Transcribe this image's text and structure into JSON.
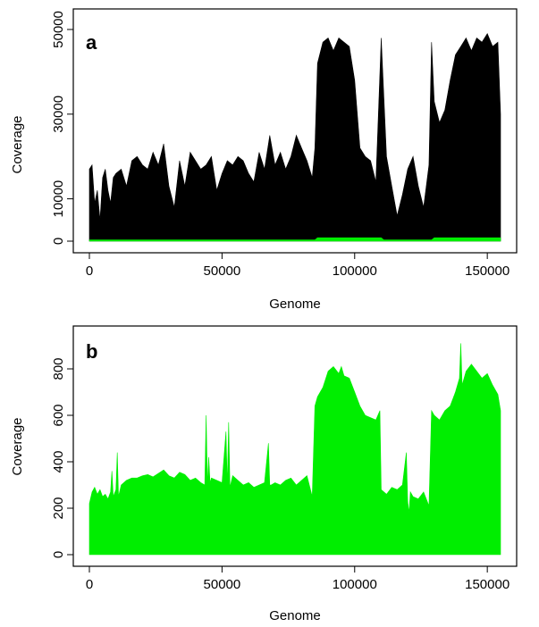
{
  "chart_data": [
    {
      "type": "area",
      "panel_label": "a",
      "xlabel": "Genome",
      "ylabel": "Coverage",
      "xlim": [
        0,
        155000
      ],
      "ylim": [
        0,
        50000
      ],
      "xticks": [
        0,
        50000,
        100000,
        150000
      ],
      "yticks": [
        0,
        10000,
        30000,
        50000
      ],
      "grid": false,
      "series": [
        {
          "color": "#000000",
          "x": [
            0,
            1000,
            2000,
            3000,
            4000,
            5000,
            6000,
            7000,
            8000,
            9000,
            10000,
            12000,
            14000,
            16000,
            18000,
            20000,
            22000,
            24000,
            26000,
            28000,
            30000,
            32000,
            34000,
            36000,
            38000,
            40000,
            42000,
            44000,
            46000,
            48000,
            50000,
            52000,
            54000,
            56000,
            58000,
            60000,
            62000,
            64000,
            66000,
            68000,
            70000,
            72000,
            74000,
            76000,
            78000,
            80000,
            82000,
            84000,
            85000,
            86000,
            88000,
            90000,
            92000,
            94000,
            96000,
            98000,
            100000,
            102000,
            104000,
            106000,
            108000,
            110000,
            112000,
            114000,
            116000,
            118000,
            120000,
            122000,
            124000,
            126000,
            128000,
            129000,
            130000,
            132000,
            134000,
            136000,
            138000,
            140000,
            142000,
            144000,
            146000,
            148000,
            150000,
            152000,
            154000,
            155000
          ],
          "values": [
            17000,
            18000,
            9000,
            12000,
            5000,
            15000,
            17000,
            12000,
            9000,
            15000,
            16000,
            17000,
            13000,
            19000,
            20000,
            18000,
            17000,
            21000,
            18000,
            23000,
            13000,
            8000,
            19000,
            13000,
            21000,
            19000,
            17000,
            18000,
            20000,
            12000,
            16000,
            19000,
            18000,
            20000,
            19000,
            16000,
            14000,
            21000,
            17000,
            25000,
            18000,
            21000,
            17000,
            20000,
            25000,
            22000,
            19000,
            15000,
            22000,
            42000,
            47000,
            48000,
            45000,
            48000,
            47000,
            46000,
            38000,
            22000,
            20000,
            19000,
            14000,
            48000,
            20000,
            13000,
            6000,
            11000,
            17000,
            20000,
            13000,
            8000,
            18000,
            47000,
            33000,
            28000,
            31000,
            38000,
            44000,
            46000,
            48000,
            45000,
            48000,
            47000,
            49000,
            46000,
            47000,
            30000
          ]
        },
        {
          "color": "#00ee00",
          "x": [
            0,
            85000,
            86000,
            110000,
            111000,
            129000,
            130000,
            155000
          ],
          "values": [
            300,
            300,
            800,
            800,
            300,
            300,
            800,
            800
          ]
        }
      ]
    },
    {
      "type": "area",
      "panel_label": "b",
      "xlabel": "Genome",
      "ylabel": "Coverage",
      "xlim": [
        0,
        155000
      ],
      "ylim": [
        0,
        900
      ],
      "xticks": [
        0,
        50000,
        100000,
        150000
      ],
      "yticks": [
        0,
        200,
        400,
        600,
        800
      ],
      "grid": false,
      "series": [
        {
          "color": "#00ee00",
          "x": [
            0,
            1000,
            2000,
            3000,
            4000,
            5000,
            6000,
            7000,
            8000,
            8500,
            9000,
            10000,
            10500,
            11000,
            12000,
            14000,
            16000,
            18000,
            20000,
            22000,
            24000,
            26000,
            28000,
            30000,
            32000,
            34000,
            36000,
            38000,
            40000,
            42000,
            43500,
            44000,
            44500,
            45000,
            45500,
            46000,
            48000,
            50000,
            51500,
            52000,
            52500,
            53000,
            54000,
            56000,
            58000,
            60000,
            62000,
            64000,
            66000,
            67500,
            68000,
            68500,
            70000,
            72000,
            74000,
            76000,
            78000,
            80000,
            82000,
            84000,
            85000,
            86000,
            88000,
            90000,
            92000,
            94000,
            95000,
            96000,
            98000,
            100000,
            102000,
            104000,
            106000,
            108000,
            109500,
            110000,
            112000,
            114000,
            116000,
            118000,
            119500,
            120000,
            120500,
            121000,
            122000,
            124000,
            126000,
            128000,
            129000,
            130000,
            132000,
            134000,
            136000,
            138000,
            139500,
            140000,
            140500,
            142000,
            144000,
            146000,
            148000,
            150000,
            152000,
            154000,
            155000
          ],
          "values": [
            220,
            270,
            290,
            260,
            280,
            250,
            260,
            240,
            270,
            360,
            250,
            280,
            440,
            250,
            300,
            320,
            330,
            330,
            340,
            345,
            335,
            350,
            365,
            340,
            330,
            355,
            345,
            320,
            330,
            310,
            300,
            600,
            300,
            420,
            310,
            330,
            320,
            310,
            530,
            300,
            570,
            290,
            340,
            320,
            300,
            310,
            290,
            300,
            310,
            480,
            300,
            300,
            310,
            300,
            320,
            330,
            300,
            320,
            340,
            250,
            640,
            680,
            720,
            790,
            810,
            780,
            810,
            770,
            760,
            700,
            640,
            600,
            590,
            580,
            620,
            280,
            260,
            290,
            280,
            300,
            440,
            230,
            180,
            270,
            250,
            240,
            270,
            210,
            620,
            600,
            580,
            620,
            640,
            700,
            760,
            910,
            730,
            790,
            820,
            790,
            760,
            780,
            730,
            690,
            620
          ]
        }
      ]
    }
  ]
}
